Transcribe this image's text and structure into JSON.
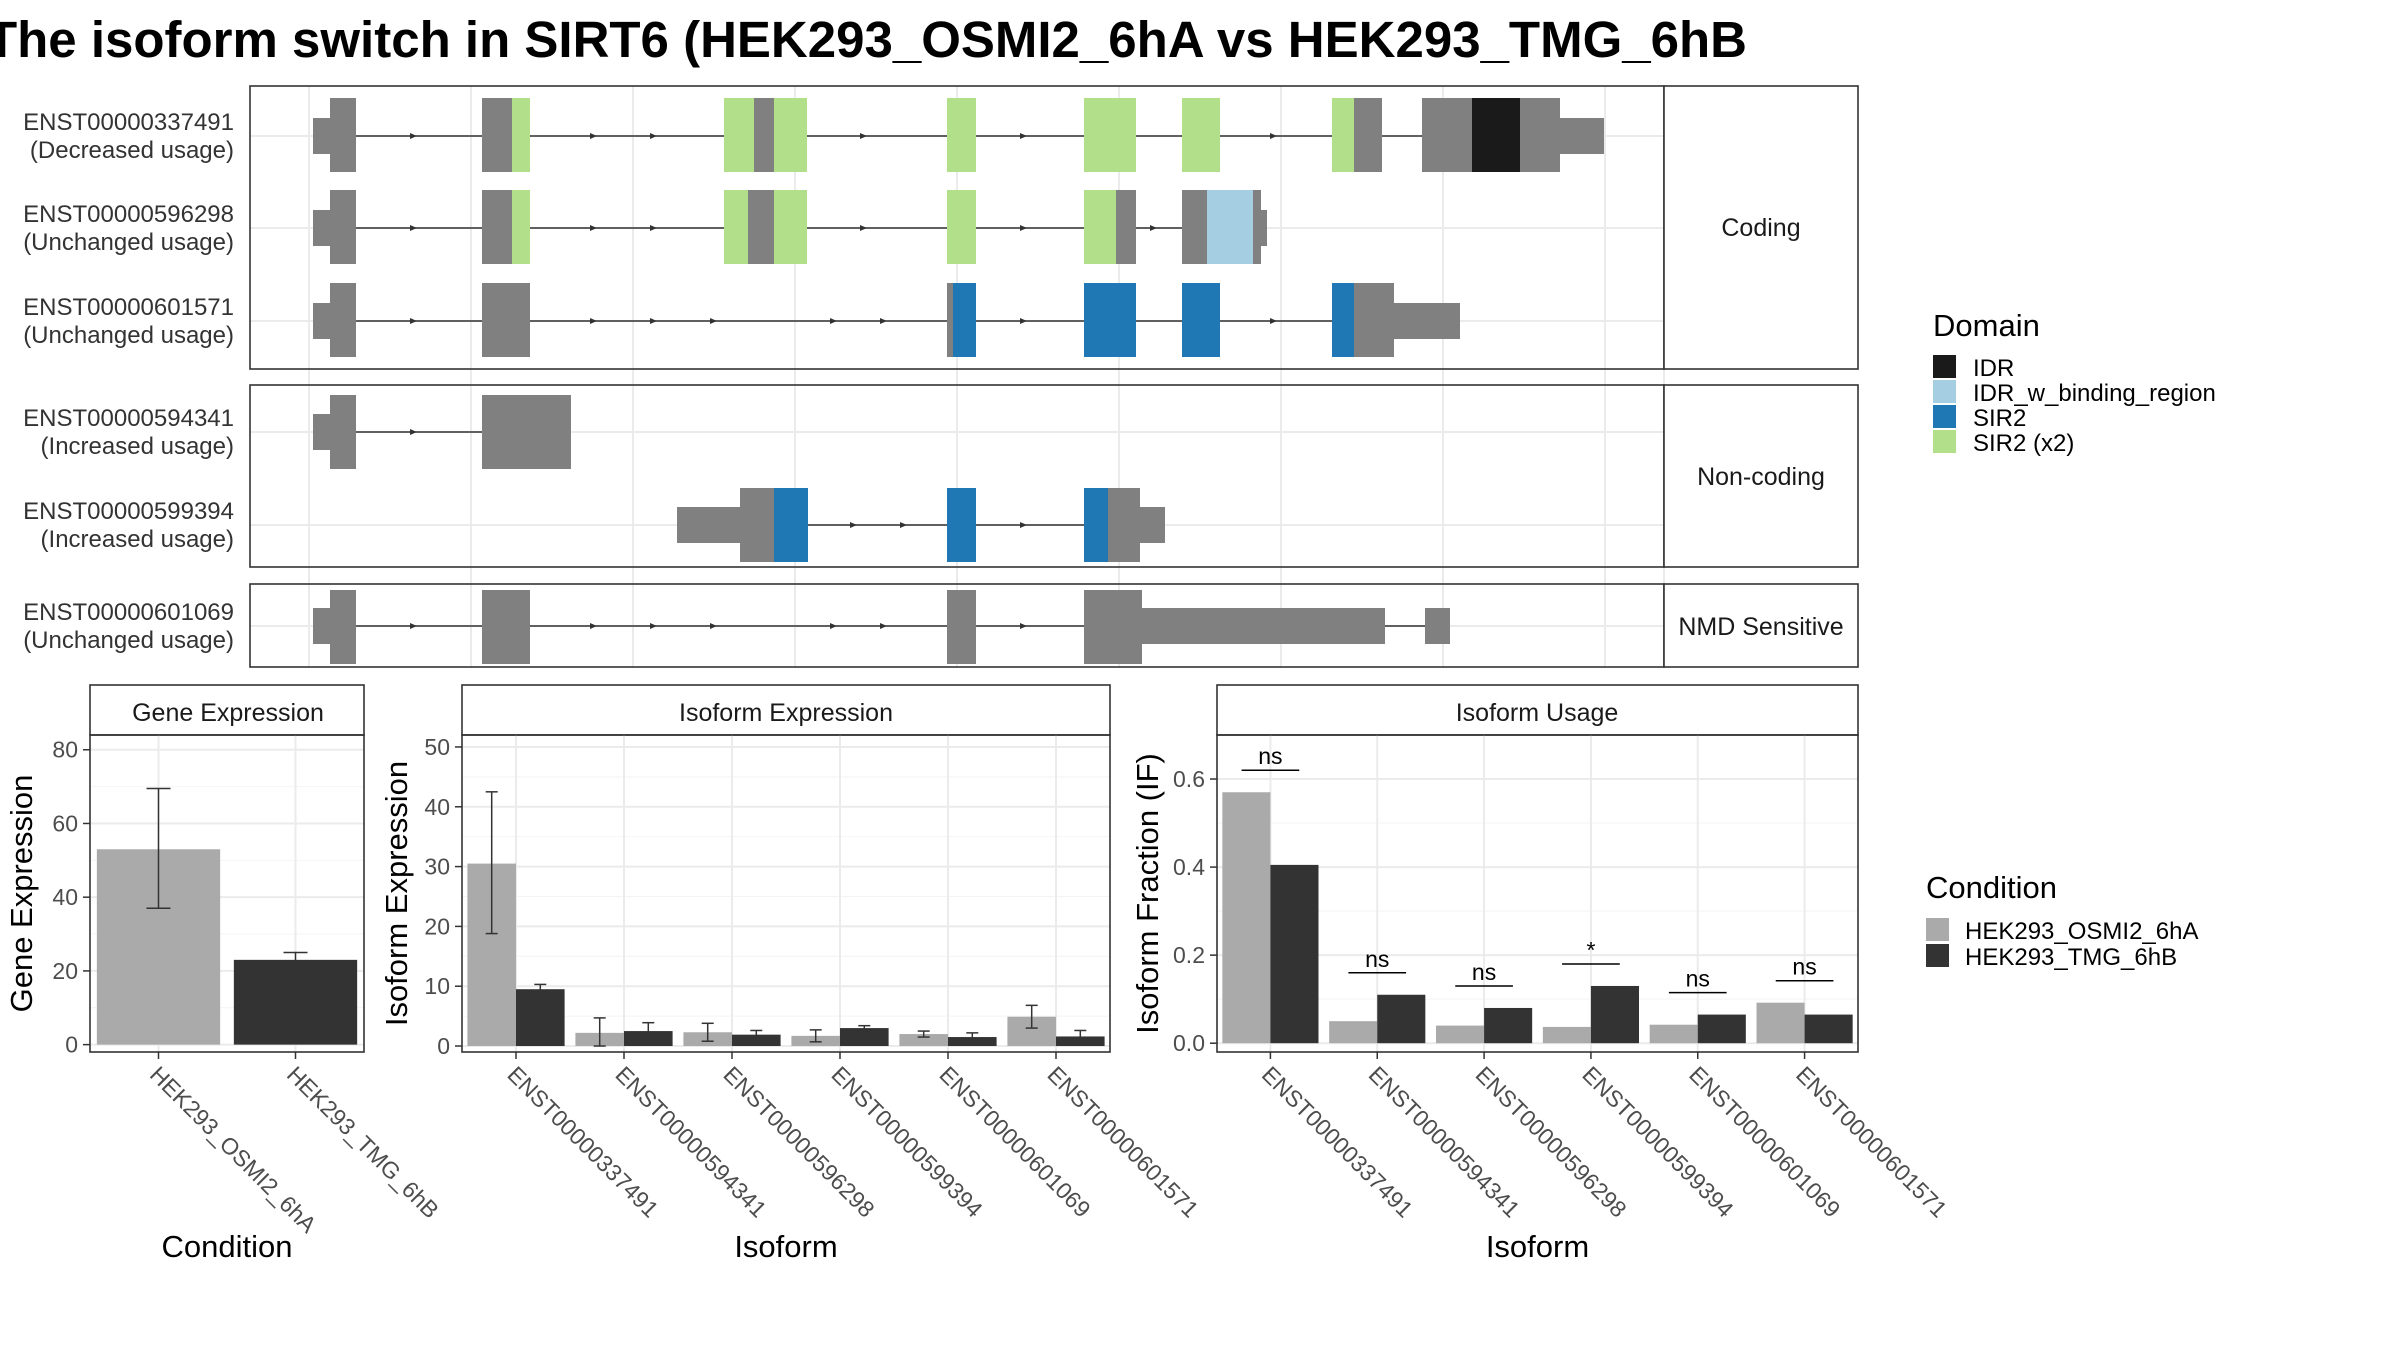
{
  "title": "The isoform switch in SIRT6 (HEK293_OSMI2_6hA vs HEK293_TMG_6hB",
  "colors": {
    "exon": "#808080",
    "IDR": "#1a1a1a",
    "IDR_w_binding_region": "#a6cee3",
    "SIR2": "#1f78b4",
    "SIR2 (x2)": "#b2df8a",
    "cond_a": "#aaaaaa",
    "cond_b": "#333333"
  },
  "domain_legend": {
    "title": "Domain",
    "items": [
      {
        "label": "IDR",
        "color": "#1a1a1a"
      },
      {
        "label": "IDR_w_binding_region",
        "color": "#a6cee3"
      },
      {
        "label": "SIR2",
        "color": "#1f78b4"
      },
      {
        "label": "SIR2 (x2)",
        "color": "#b2df8a"
      }
    ]
  },
  "condition_legend": {
    "title": "Condition",
    "items": [
      {
        "label": "HEK293_OSMI2_6hA",
        "color": "#aaaaaa"
      },
      {
        "label": "HEK293_TMG_6hB",
        "color": "#333333"
      }
    ]
  },
  "structure_groups": [
    {
      "label": "Coding",
      "isoforms": [
        {
          "id": "ENST00000337491",
          "usage": "(Decreased usage)"
        },
        {
          "id": "ENST00000596298",
          "usage": "(Unchanged usage)"
        },
        {
          "id": "ENST00000601571",
          "usage": "(Unchanged usage)"
        }
      ]
    },
    {
      "label": "Non-coding",
      "isoforms": [
        {
          "id": "ENST00000594341",
          "usage": "(Increased usage)"
        },
        {
          "id": "ENST00000599394",
          "usage": "(Increased usage)"
        }
      ]
    },
    {
      "label": "NMD Sensitive",
      "isoforms": [
        {
          "id": "ENST00000601069",
          "usage": "(Unchanged usage)"
        }
      ]
    }
  ],
  "chart_data": [
    {
      "type": "bar",
      "title": "Gene Expression",
      "xlabel": "Condition",
      "ylabel": "Gene Expression",
      "categories": [
        "HEK293_OSMI2_6hA",
        "HEK293_TMG_6hB"
      ],
      "values": [
        53,
        23
      ],
      "error_low": [
        37,
        21.5
      ],
      "error_high": [
        69.5,
        25
      ],
      "ylim": [
        -2,
        84
      ],
      "yticks": [
        0,
        20,
        40,
        60,
        80
      ]
    },
    {
      "type": "bar",
      "title": "Isoform Expression",
      "xlabel": "Isoform",
      "ylabel": "Isoform Expression",
      "categories": [
        "ENST00000337491",
        "ENST00000594341",
        "ENST00000596298",
        "ENST00000599394",
        "ENST00000601069",
        "ENST00000601571"
      ],
      "series": [
        {
          "name": "HEK293_OSMI2_6hA",
          "values": [
            30.5,
            2.2,
            2.3,
            1.7,
            2.0,
            4.9
          ],
          "error_low": [
            18.8,
            0,
            0.8,
            0.7,
            1.5,
            3.0
          ],
          "error_high": [
            42.5,
            4.7,
            3.8,
            2.7,
            2.5,
            6.8
          ]
        },
        {
          "name": "HEK293_TMG_6hB",
          "values": [
            9.5,
            2.5,
            1.9,
            3.0,
            1.5,
            1.6
          ],
          "error_low": [
            8.7,
            1.4,
            1.3,
            2.6,
            1.0,
            0.5
          ],
          "error_high": [
            10.3,
            3.9,
            2.6,
            3.4,
            2.2,
            2.6
          ]
        }
      ],
      "ylim": [
        -1,
        52
      ],
      "yticks": [
        0,
        10,
        20,
        30,
        40,
        50
      ]
    },
    {
      "type": "bar",
      "title": "Isoform Usage",
      "xlabel": "Isoform",
      "ylabel": "Isoform Fraction (IF)",
      "categories": [
        "ENST00000337491",
        "ENST00000594341",
        "ENST00000596298",
        "ENST00000599394",
        "ENST00000601069",
        "ENST00000601571"
      ],
      "series": [
        {
          "name": "HEK293_OSMI2_6hA",
          "values": [
            0.57,
            0.05,
            0.04,
            0.037,
            0.042,
            0.092
          ]
        },
        {
          "name": "HEK293_TMG_6hB",
          "values": [
            0.405,
            0.11,
            0.08,
            0.13,
            0.065,
            0.065
          ]
        }
      ],
      "significance": [
        "ns",
        "ns",
        "ns",
        "*",
        "ns",
        "ns"
      ],
      "ylim": [
        -0.02,
        0.7
      ],
      "yticks": [
        0.0,
        0.2,
        0.4,
        0.6
      ],
      "ytick_labels": [
        "0.0",
        "0.2",
        "0.4",
        "0.6"
      ]
    }
  ]
}
